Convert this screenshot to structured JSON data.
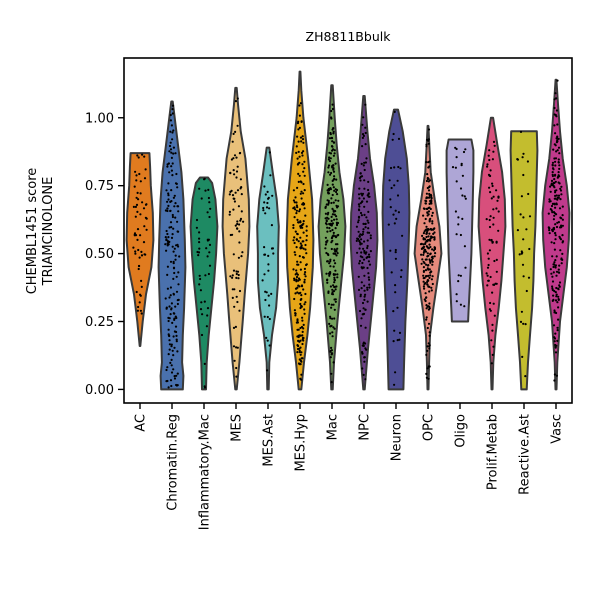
{
  "chart_data": {
    "type": "violin",
    "title": "ZH8811Bbulk",
    "ylabel": [
      "CHEMBL1451 score",
      "TRIAMCINOLONE"
    ],
    "xlabel": "",
    "ylim": [
      -0.05,
      1.22
    ],
    "yticks": [
      0.0,
      0.25,
      0.5,
      0.75,
      1.0
    ],
    "ytick_labels": [
      "0.00",
      "0.25",
      "0.50",
      "0.75",
      "1.00"
    ],
    "grid": false,
    "points_shown": true,
    "categories": [
      "AC",
      "Chromatin.Reg",
      "Inflammatory.Mac",
      "MES",
      "MES.Ast",
      "MES.Hyp",
      "Mac",
      "NPC",
      "Neuron",
      "OPC",
      "Oligo",
      "Prolif.Metab",
      "Reactive.Ast",
      "Vasc"
    ],
    "series": [
      {
        "category": "AC",
        "color": "#e07b1f",
        "min": 0.16,
        "max": 0.87,
        "n": 60,
        "density": [
          [
            0.16,
            0.02
          ],
          [
            0.25,
            0.2
          ],
          [
            0.35,
            0.45
          ],
          [
            0.45,
            0.85
          ],
          [
            0.55,
            1.0
          ],
          [
            0.65,
            0.95
          ],
          [
            0.75,
            0.8
          ],
          [
            0.82,
            0.75
          ],
          [
            0.87,
            0.7
          ]
        ]
      },
      {
        "category": "Chromatin.Reg",
        "color": "#4a71ad",
        "min": 0.0,
        "max": 1.06,
        "n": 170,
        "density": [
          [
            0.0,
            0.8
          ],
          [
            0.05,
            0.85
          ],
          [
            0.1,
            0.75
          ],
          [
            0.2,
            0.8
          ],
          [
            0.3,
            0.9
          ],
          [
            0.45,
            1.0
          ],
          [
            0.55,
            0.95
          ],
          [
            0.7,
            0.85
          ],
          [
            0.8,
            0.7
          ],
          [
            0.9,
            0.45
          ],
          [
            1.0,
            0.2
          ],
          [
            1.06,
            0.05
          ]
        ]
      },
      {
        "category": "Inflammatory.Mac",
        "color": "#1e8a63",
        "min": 0.0,
        "max": 0.78,
        "n": 45,
        "density": [
          [
            0.0,
            0.15
          ],
          [
            0.1,
            0.2
          ],
          [
            0.2,
            0.35
          ],
          [
            0.3,
            0.55
          ],
          [
            0.4,
            0.75
          ],
          [
            0.5,
            0.9
          ],
          [
            0.6,
            1.0
          ],
          [
            0.7,
            0.85
          ],
          [
            0.76,
            0.6
          ],
          [
            0.78,
            0.3
          ]
        ]
      },
      {
        "category": "MES",
        "color": "#e9c07a",
        "min": 0.0,
        "max": 1.11,
        "n": 80,
        "density": [
          [
            0.0,
            0.05
          ],
          [
            0.1,
            0.25
          ],
          [
            0.25,
            0.5
          ],
          [
            0.35,
            0.65
          ],
          [
            0.5,
            0.9
          ],
          [
            0.6,
            1.0
          ],
          [
            0.7,
            0.95
          ],
          [
            0.85,
            0.7
          ],
          [
            0.95,
            0.35
          ],
          [
            1.05,
            0.15
          ],
          [
            1.11,
            0.05
          ]
        ]
      },
      {
        "category": "MES.Ast",
        "color": "#6bbfbf",
        "min": 0.0,
        "max": 0.89,
        "n": 40,
        "density": [
          [
            0.0,
            0.05
          ],
          [
            0.1,
            0.1
          ],
          [
            0.2,
            0.3
          ],
          [
            0.3,
            0.6
          ],
          [
            0.4,
            0.75
          ],
          [
            0.5,
            0.75
          ],
          [
            0.6,
            0.8
          ],
          [
            0.7,
            0.65
          ],
          [
            0.8,
            0.35
          ],
          [
            0.89,
            0.1
          ]
        ]
      },
      {
        "category": "MES.Hyp",
        "color": "#e6a617",
        "min": 0.0,
        "max": 1.17,
        "n": 220,
        "density": [
          [
            0.0,
            0.1
          ],
          [
            0.1,
            0.3
          ],
          [
            0.2,
            0.55
          ],
          [
            0.3,
            0.75
          ],
          [
            0.45,
            0.95
          ],
          [
            0.55,
            1.0
          ],
          [
            0.7,
            0.9
          ],
          [
            0.85,
            0.6
          ],
          [
            1.0,
            0.25
          ],
          [
            1.1,
            0.1
          ],
          [
            1.17,
            0.03
          ]
        ]
      },
      {
        "category": "Mac",
        "color": "#74a15d",
        "min": 0.0,
        "max": 1.12,
        "n": 230,
        "density": [
          [
            0.0,
            0.05
          ],
          [
            0.1,
            0.15
          ],
          [
            0.25,
            0.4
          ],
          [
            0.4,
            0.7
          ],
          [
            0.5,
            0.9
          ],
          [
            0.6,
            1.0
          ],
          [
            0.7,
            0.85
          ],
          [
            0.8,
            0.55
          ],
          [
            0.9,
            0.35
          ],
          [
            1.0,
            0.2
          ],
          [
            1.12,
            0.05
          ]
        ]
      },
      {
        "category": "NPC",
        "color": "#6b3f86",
        "min": 0.0,
        "max": 1.08,
        "n": 160,
        "density": [
          [
            0.0,
            0.05
          ],
          [
            0.15,
            0.3
          ],
          [
            0.3,
            0.6
          ],
          [
            0.45,
            0.9
          ],
          [
            0.55,
            1.0
          ],
          [
            0.65,
            0.95
          ],
          [
            0.75,
            0.75
          ],
          [
            0.85,
            0.45
          ],
          [
            0.95,
            0.25
          ],
          [
            1.08,
            0.05
          ]
        ]
      },
      {
        "category": "Neuron",
        "color": "#4e4e95",
        "min": 0.0,
        "max": 1.03,
        "n": 40,
        "density": [
          [
            0.0,
            0.55
          ],
          [
            0.1,
            0.6
          ],
          [
            0.25,
            0.7
          ],
          [
            0.4,
            0.85
          ],
          [
            0.55,
            0.95
          ],
          [
            0.65,
            1.0
          ],
          [
            0.75,
            0.95
          ],
          [
            0.85,
            0.8
          ],
          [
            0.95,
            0.5
          ],
          [
            1.03,
            0.15
          ]
        ]
      },
      {
        "category": "OPC",
        "color": "#e58a7c",
        "min": 0.0,
        "max": 0.97,
        "n": 230,
        "density": [
          [
            0.0,
            0.04
          ],
          [
            0.1,
            0.08
          ],
          [
            0.2,
            0.15
          ],
          [
            0.3,
            0.4
          ],
          [
            0.4,
            0.7
          ],
          [
            0.5,
            1.0
          ],
          [
            0.6,
            0.85
          ],
          [
            0.7,
            0.5
          ],
          [
            0.8,
            0.2
          ],
          [
            0.9,
            0.1
          ],
          [
            0.97,
            0.03
          ]
        ]
      },
      {
        "category": "Oligo",
        "color": "#aea6d6",
        "min": 0.25,
        "max": 0.92,
        "n": 30,
        "density": [
          [
            0.25,
            0.6
          ],
          [
            0.3,
            0.65
          ],
          [
            0.4,
            0.75
          ],
          [
            0.5,
            0.85
          ],
          [
            0.6,
            0.9
          ],
          [
            0.7,
            0.95
          ],
          [
            0.8,
            1.0
          ],
          [
            0.88,
            1.0
          ],
          [
            0.92,
            0.85
          ]
        ]
      },
      {
        "category": "Prolif.Metab",
        "color": "#d84f7c",
        "min": 0.0,
        "max": 1.0,
        "n": 70,
        "density": [
          [
            0.0,
            0.04
          ],
          [
            0.1,
            0.1
          ],
          [
            0.2,
            0.25
          ],
          [
            0.3,
            0.5
          ],
          [
            0.4,
            0.7
          ],
          [
            0.5,
            0.85
          ],
          [
            0.6,
            1.0
          ],
          [
            0.7,
            0.95
          ],
          [
            0.8,
            0.75
          ],
          [
            0.9,
            0.4
          ],
          [
            1.0,
            0.08
          ]
        ]
      },
      {
        "category": "Reactive.Ast",
        "color": "#c3bd2e",
        "min": 0.0,
        "max": 0.95,
        "n": 30,
        "density": [
          [
            0.0,
            0.2
          ],
          [
            0.1,
            0.3
          ],
          [
            0.2,
            0.45
          ],
          [
            0.3,
            0.6
          ],
          [
            0.4,
            0.7
          ],
          [
            0.5,
            0.75
          ],
          [
            0.6,
            0.85
          ],
          [
            0.7,
            0.9
          ],
          [
            0.8,
            0.95
          ],
          [
            0.88,
            1.0
          ],
          [
            0.95,
            0.95
          ]
        ]
      },
      {
        "category": "Vasc",
        "color": "#c03a8c",
        "min": 0.0,
        "max": 1.14,
        "n": 210,
        "density": [
          [
            0.0,
            0.04
          ],
          [
            0.1,
            0.1
          ],
          [
            0.25,
            0.3
          ],
          [
            0.35,
            0.55
          ],
          [
            0.45,
            0.8
          ],
          [
            0.55,
            0.95
          ],
          [
            0.65,
            1.0
          ],
          [
            0.75,
            0.8
          ],
          [
            0.85,
            0.5
          ],
          [
            0.95,
            0.3
          ],
          [
            1.05,
            0.15
          ],
          [
            1.14,
            0.03
          ]
        ]
      }
    ]
  }
}
